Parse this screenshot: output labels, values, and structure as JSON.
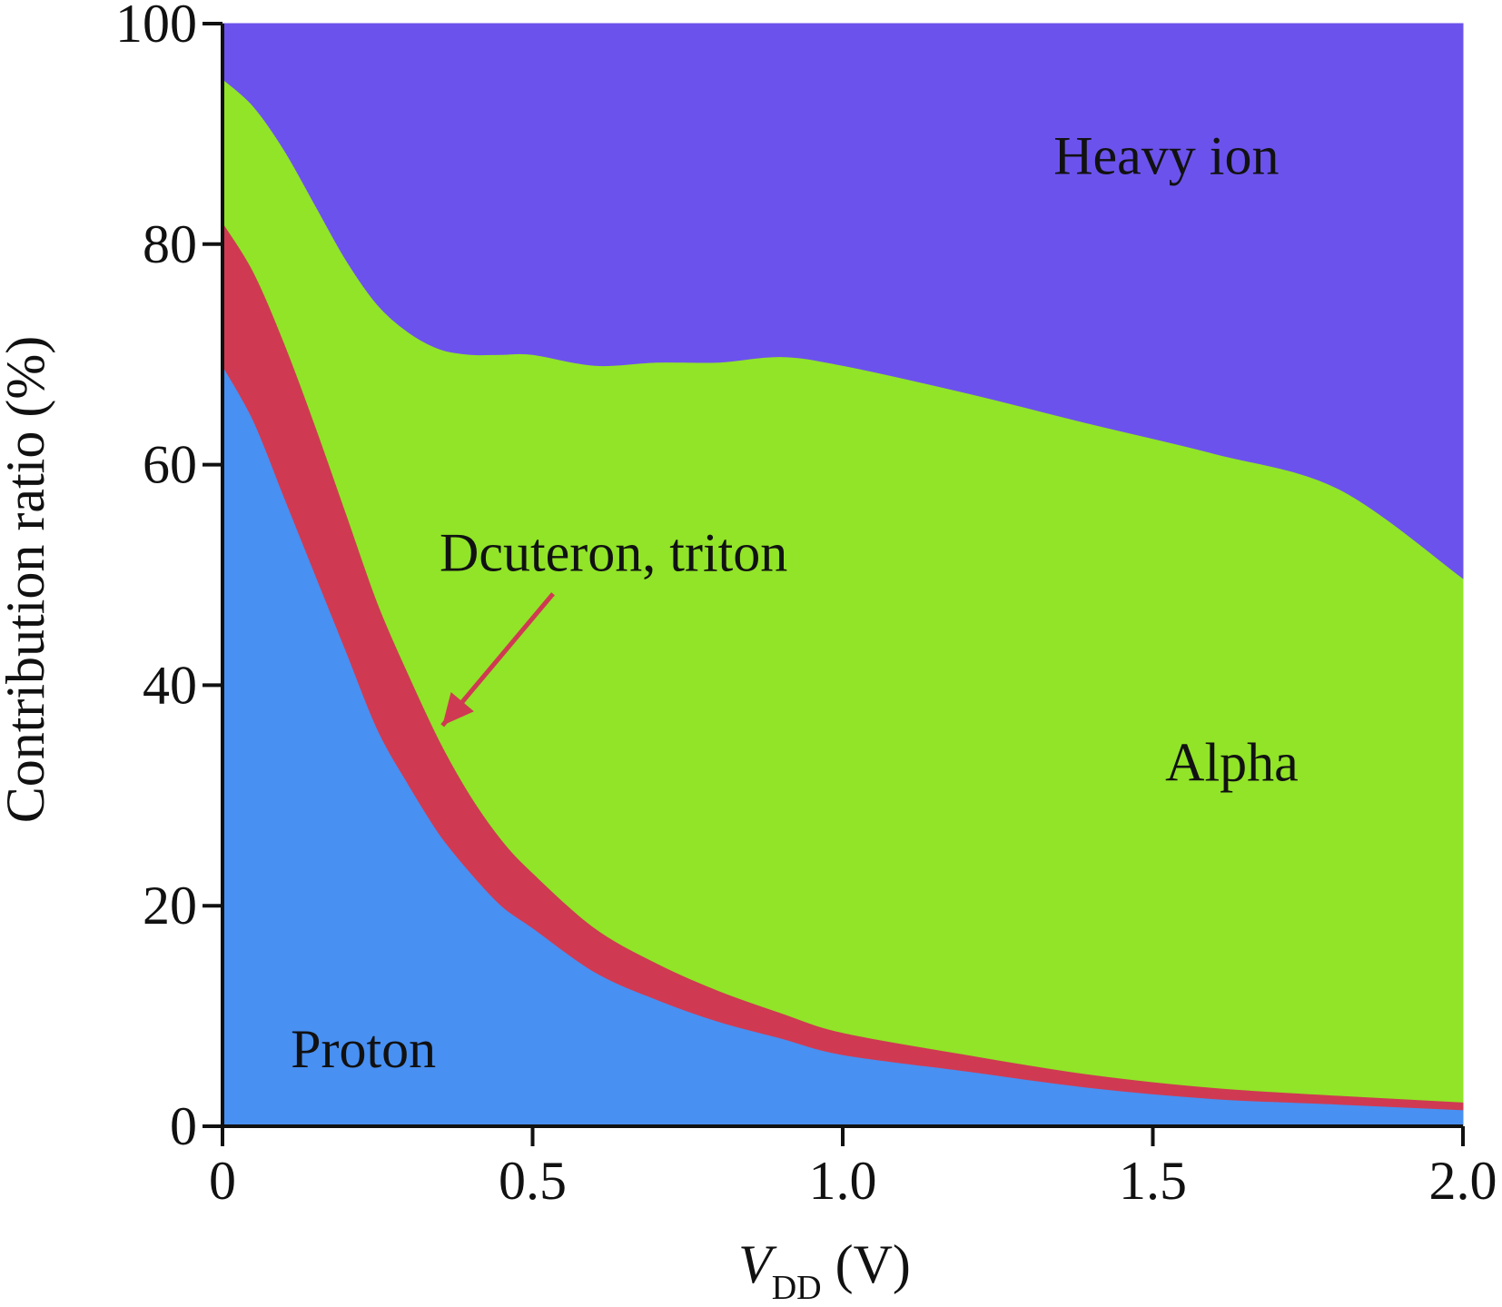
{
  "chart_data": {
    "type": "area",
    "stacked": true,
    "x": [
      0,
      0.05,
      0.1,
      0.15,
      0.2,
      0.25,
      0.3,
      0.35,
      0.4,
      0.45,
      0.5,
      0.6,
      0.7,
      0.8,
      0.9,
      1.0,
      1.2,
      1.4,
      1.6,
      1.8,
      2.0
    ],
    "series": [
      {
        "name": "Proton",
        "color": "#4890f2",
        "values": [
          69,
          64,
          57,
          50,
          43,
          36,
          31,
          26.5,
          23,
          20,
          18,
          14,
          11.5,
          9.5,
          8,
          6.5,
          5,
          3.5,
          2.5,
          2,
          1.5
        ]
      },
      {
        "name": "Dcuteron, triton",
        "color": "#cf3a52",
        "values": [
          13,
          13.5,
          14,
          13.5,
          12.5,
          11.5,
          10,
          8.5,
          7,
          6,
          5,
          4,
          3.3,
          2.8,
          2.3,
          2,
          1.5,
          1.2,
          1,
          0.8,
          0.7
        ]
      },
      {
        "name": "Alpha",
        "color": "#91e428",
        "values": [
          13,
          15,
          17.5,
          20,
          23,
          27,
          31,
          35.5,
          40,
          44,
          47,
          51,
          54.5,
          57,
          59.5,
          60.5,
          60,
          59,
          57.5,
          55,
          47.5
        ]
      },
      {
        "name": "Heavy ion",
        "color": "#6c52ec",
        "values": [
          5,
          7.5,
          11.5,
          16.5,
          21.5,
          25.5,
          28,
          29.5,
          30,
          30,
          30,
          31,
          30.7,
          30.7,
          30.2,
          31,
          33.5,
          36.3,
          39,
          42.2,
          50.3
        ]
      }
    ],
    "xlabel_main": "V",
    "xlabel_sub": "DD",
    "xlabel_unit": " (V)",
    "ylabel": "Contribution ratio (%)",
    "xlim": [
      0,
      2.0
    ],
    "ylim": [
      0,
      100
    ],
    "x_ticks": [
      {
        "value": 0,
        "label": "0"
      },
      {
        "value": 0.5,
        "label": "0.5"
      },
      {
        "value": 1.0,
        "label": "1.0"
      },
      {
        "value": 1.5,
        "label": "1.5"
      },
      {
        "value": 2.0,
        "label": "2.0"
      }
    ],
    "y_ticks": [
      {
        "value": 0,
        "label": "0"
      },
      {
        "value": 20,
        "label": "20"
      },
      {
        "value": 40,
        "label": "40"
      },
      {
        "value": 60,
        "label": "60"
      },
      {
        "value": 80,
        "label": "80"
      },
      {
        "value": 100,
        "label": "100"
      }
    ],
    "grid": false,
    "annotations": [
      {
        "text": "Heavy ion",
        "x": 1.34,
        "y": 88
      },
      {
        "text": "Alpha",
        "x": 1.52,
        "y": 33
      },
      {
        "text": "Proton",
        "x": 0.11,
        "y": 7
      },
      {
        "text": "Dcuteron, triton",
        "x": 0.35,
        "y": 52,
        "arrow_to_x": 0.34,
        "arrow_to_y": 37
      }
    ]
  }
}
